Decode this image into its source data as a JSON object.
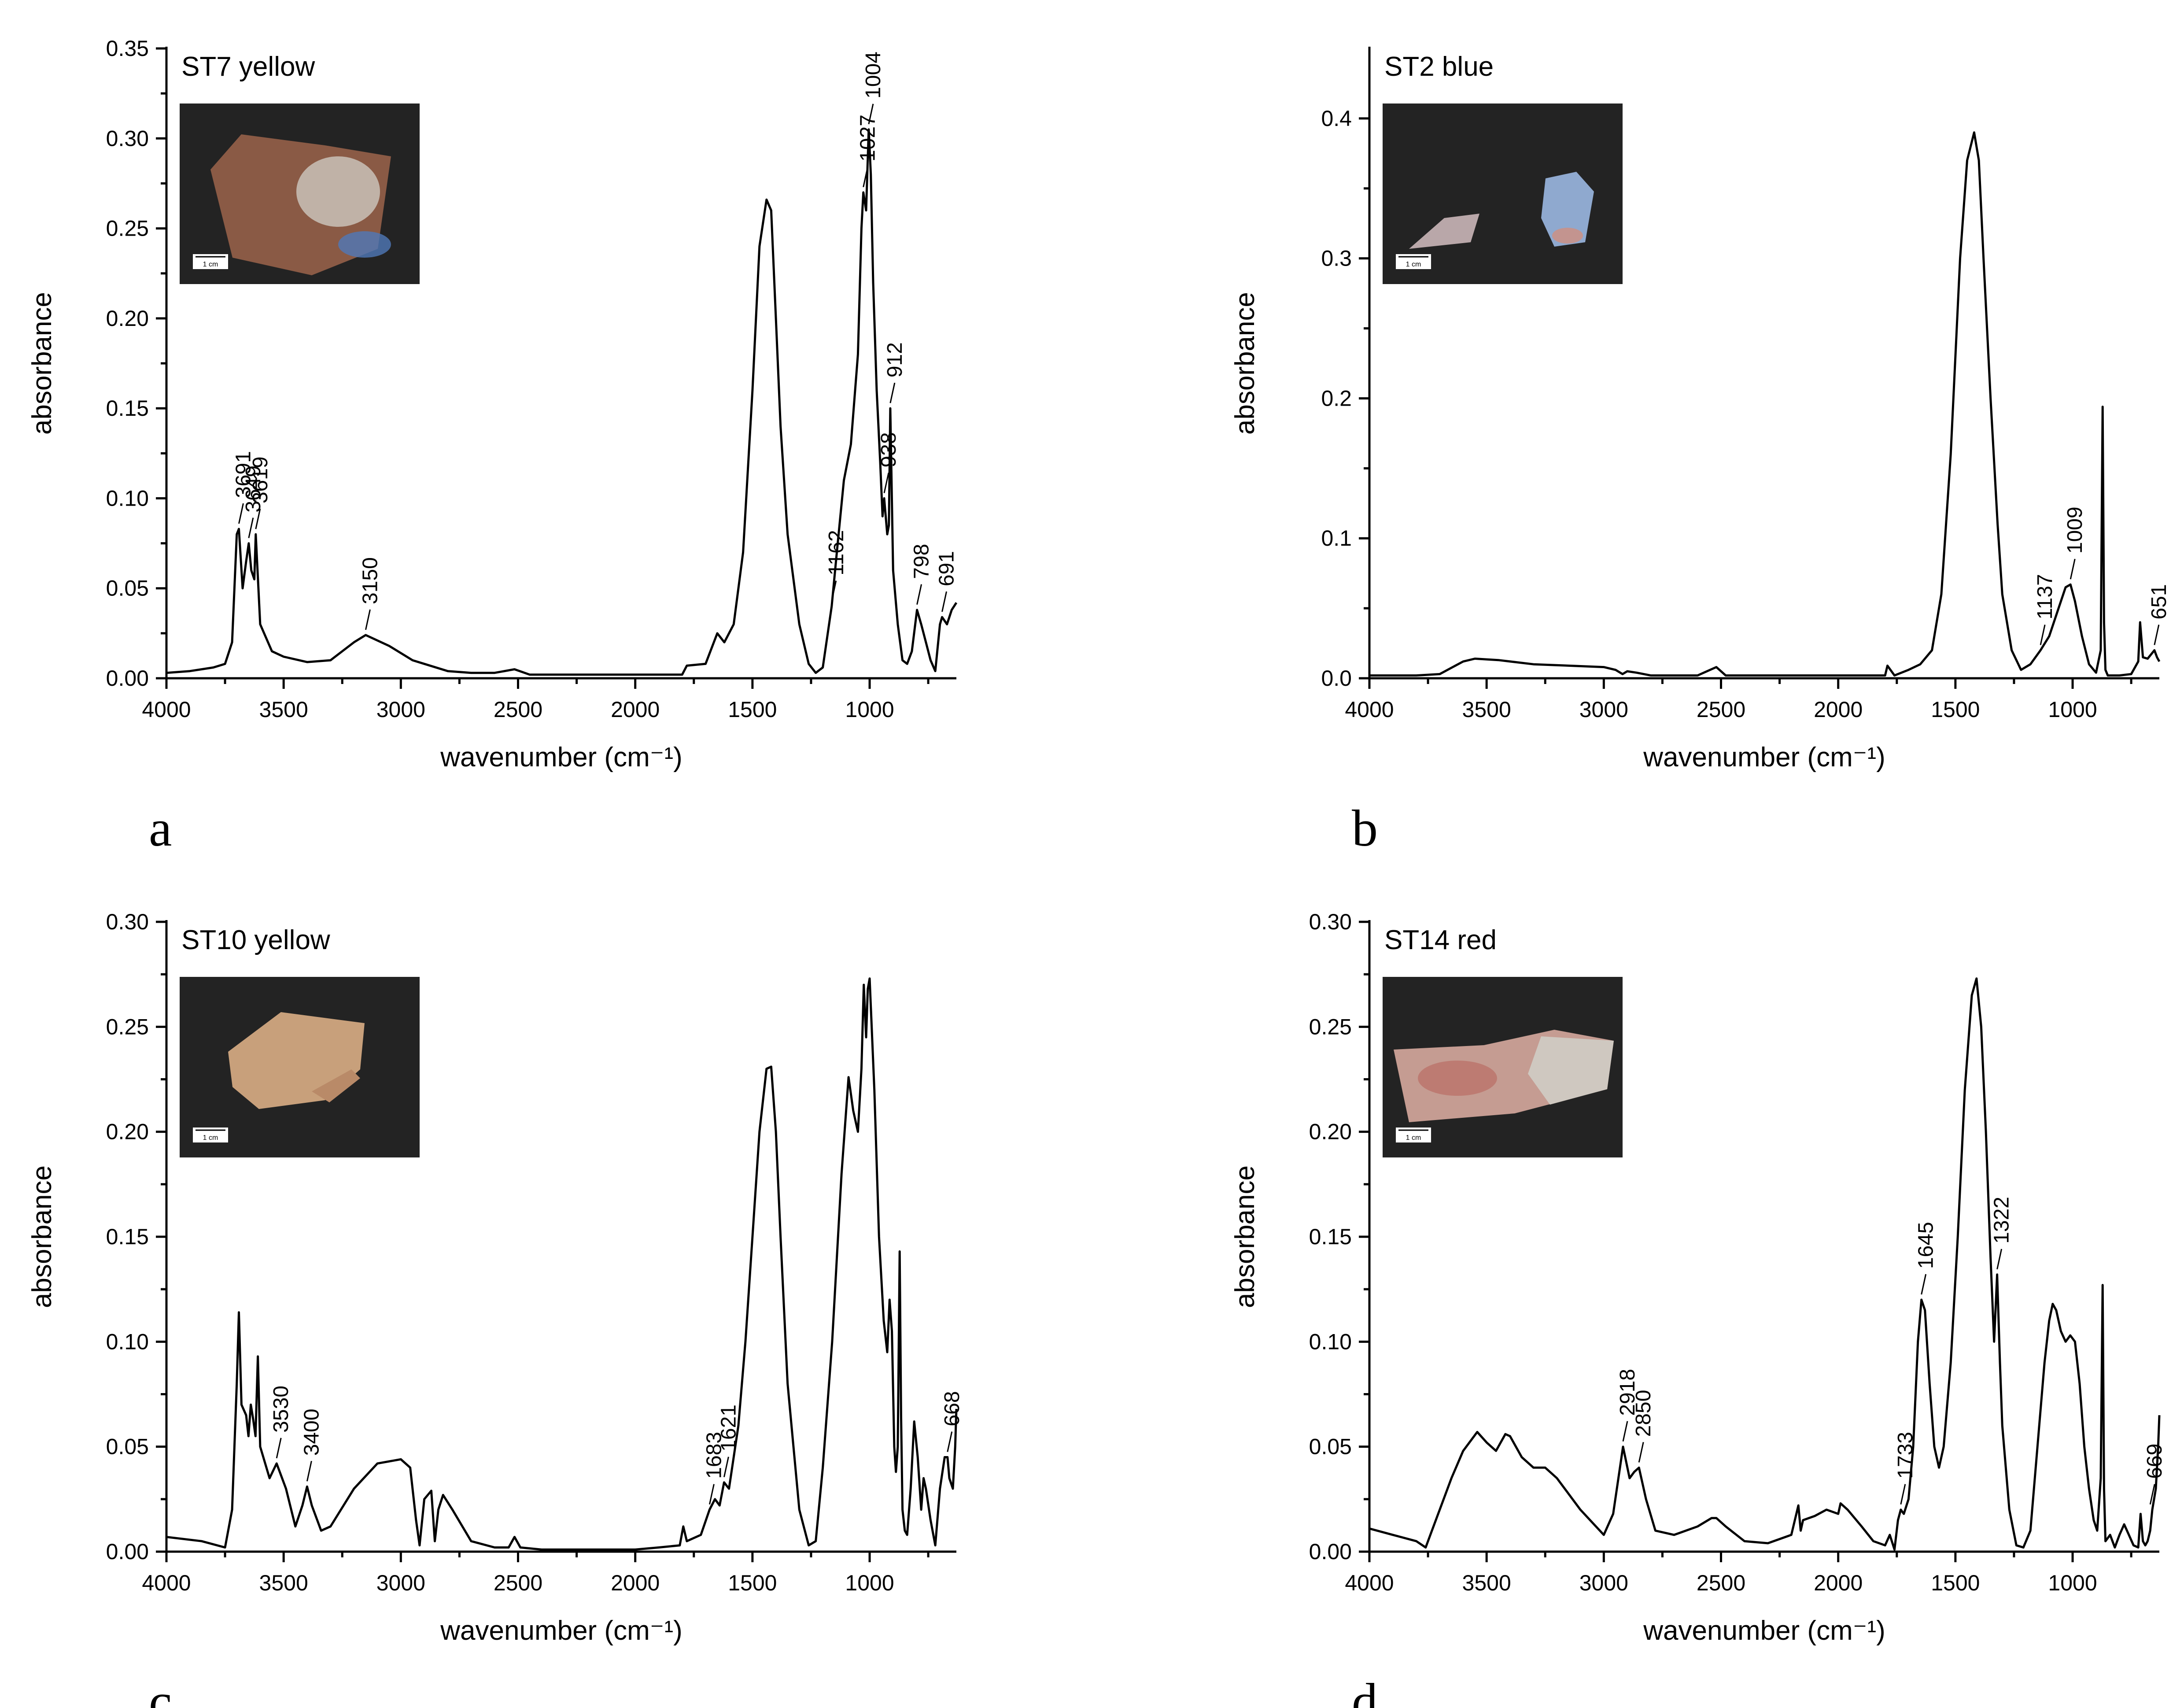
{
  "chart_data": [
    {
      "type": "line",
      "panel": "a",
      "title": "ST7 yellow",
      "xlabel": "wavenumber (cm⁻¹)",
      "ylabel": "absorbance",
      "xlim": [
        4000,
        630
      ],
      "ylim": [
        0,
        0.35
      ],
      "x_reversed": true,
      "xticks": [
        4000,
        3500,
        3000,
        2500,
        2000,
        1500,
        1000
      ],
      "xtick_labels": [
        "4000",
        "3500",
        "3000",
        "2500",
        "2000",
        "1500",
        "1000"
      ],
      "yticks": [
        0,
        0.05,
        0.1,
        0.15,
        0.2,
        0.25,
        0.3,
        0.35
      ],
      "ytick_labels": [
        "0.00",
        "0.05",
        "0.10",
        "0.15",
        "0.20",
        "0.25",
        "0.30",
        "0.35"
      ],
      "inset": {
        "scale_label": "1 cm",
        "colors": [
          "#8a5a45",
          "#c9c2b9",
          "#4f78b8"
        ]
      },
      "series": [
        {
          "x": [
            4000,
            3900,
            3800,
            3750,
            3720,
            3700,
            3691,
            3675,
            3660,
            3649,
            3638,
            3625,
            3619,
            3600,
            3550,
            3500,
            3400,
            3300,
            3200,
            3150,
            3050,
            2950,
            2900,
            2800,
            2700,
            2600,
            2515,
            2450,
            2300,
            2100,
            2000,
            1900,
            1800,
            1780,
            1700,
            1650,
            1620,
            1580,
            1540,
            1500,
            1470,
            1440,
            1420,
            1400,
            1380,
            1350,
            1300,
            1260,
            1230,
            1200,
            1162,
            1140,
            1110,
            1080,
            1050,
            1035,
            1027,
            1015,
            1004,
            995,
            985,
            970,
            955,
            945,
            938,
            925,
            918,
            912,
            900,
            880,
            860,
            840,
            820,
            798,
            780,
            760,
            740,
            720,
            700,
            691,
            670,
            650,
            630
          ],
          "y": [
            0.003,
            0.004,
            0.006,
            0.008,
            0.02,
            0.08,
            0.083,
            0.05,
            0.065,
            0.075,
            0.06,
            0.055,
            0.08,
            0.03,
            0.015,
            0.012,
            0.009,
            0.01,
            0.02,
            0.024,
            0.018,
            0.01,
            0.008,
            0.004,
            0.003,
            0.003,
            0.005,
            0.002,
            0.002,
            0.002,
            0.002,
            0.002,
            0.002,
            0.007,
            0.008,
            0.025,
            0.02,
            0.03,
            0.07,
            0.16,
            0.24,
            0.266,
            0.26,
            0.2,
            0.14,
            0.08,
            0.03,
            0.008,
            0.003,
            0.006,
            0.04,
            0.07,
            0.11,
            0.13,
            0.18,
            0.25,
            0.27,
            0.26,
            0.305,
            0.28,
            0.22,
            0.16,
            0.12,
            0.09,
            0.1,
            0.08,
            0.085,
            0.15,
            0.06,
            0.03,
            0.01,
            0.008,
            0.015,
            0.038,
            0.03,
            0.02,
            0.01,
            0.004,
            0.03,
            0.034,
            0.03,
            0.038,
            0.042
          ]
        }
      ],
      "annotations": [
        {
          "label": "3691",
          "x": 3691,
          "y": 0.083
        },
        {
          "label": "3649",
          "x": 3649,
          "y": 0.075
        },
        {
          "label": "3619",
          "x": 3619,
          "y": 0.08
        },
        {
          "label": "3150",
          "x": 3150,
          "y": 0.024
        },
        {
          "label": "1162",
          "x": 1162,
          "y": 0.04
        },
        {
          "label": "1027",
          "x": 1027,
          "y": 0.27
        },
        {
          "label": "1004",
          "x": 1004,
          "y": 0.305
        },
        {
          "label": "938",
          "x": 938,
          "y": 0.1
        },
        {
          "label": "912",
          "x": 912,
          "y": 0.15
        },
        {
          "label": "798",
          "x": 798,
          "y": 0.038
        },
        {
          "label": "691",
          "x": 691,
          "y": 0.034
        }
      ]
    },
    {
      "type": "line",
      "panel": "b",
      "title": "ST2 blue",
      "xlabel": "wavenumber (cm⁻¹)",
      "ylabel": "absorbance",
      "xlim": [
        4000,
        630
      ],
      "ylim": [
        0,
        0.45
      ],
      "x_reversed": true,
      "xticks": [
        4000,
        3500,
        3000,
        2500,
        2000,
        1500,
        1000
      ],
      "xtick_labels": [
        "4000",
        "3500",
        "3000",
        "2500",
        "2000",
        "1500",
        "1000"
      ],
      "yticks": [
        0,
        0.1,
        0.2,
        0.3,
        0.4
      ],
      "ytick_labels": [
        "0.0",
        "0.1",
        "0.2",
        "0.3",
        "0.4"
      ],
      "inset": {
        "scale_label": "1 cm",
        "colors": [
          "#b9a7a9",
          "#8fa9cf",
          "#d08f7e"
        ]
      },
      "series": [
        {
          "x": [
            4000,
            3800,
            3700,
            3600,
            3550,
            3450,
            3300,
            3150,
            3000,
            2950,
            2920,
            2900,
            2860,
            2800,
            2600,
            2520,
            2480,
            2300,
            2100,
            2000,
            1900,
            1800,
            1790,
            1760,
            1700,
            1650,
            1600,
            1560,
            1520,
            1480,
            1450,
            1420,
            1400,
            1380,
            1350,
            1320,
            1300,
            1260,
            1220,
            1180,
            1137,
            1100,
            1060,
            1030,
            1009,
            990,
            960,
            930,
            900,
            880,
            872,
            866,
            860,
            850,
            800,
            750,
            720,
            712,
            700,
            680,
            651,
            640,
            630
          ],
          "y": [
            0.002,
            0.002,
            0.003,
            0.012,
            0.014,
            0.013,
            0.01,
            0.009,
            0.008,
            0.006,
            0.003,
            0.005,
            0.004,
            0.002,
            0.002,
            0.008,
            0.002,
            0.002,
            0.002,
            0.002,
            0.002,
            0.002,
            0.009,
            0.002,
            0.006,
            0.01,
            0.02,
            0.06,
            0.16,
            0.3,
            0.37,
            0.39,
            0.37,
            0.3,
            0.2,
            0.11,
            0.06,
            0.02,
            0.006,
            0.01,
            0.02,
            0.03,
            0.05,
            0.065,
            0.067,
            0.055,
            0.03,
            0.01,
            0.004,
            0.02,
            0.194,
            0.04,
            0.006,
            0.002,
            0.002,
            0.003,
            0.012,
            0.04,
            0.015,
            0.014,
            0.02,
            0.015,
            0.012
          ]
        }
      ],
      "annotations": [
        {
          "label": "1137",
          "x": 1137,
          "y": 0.02
        },
        {
          "label": "1009",
          "x": 1009,
          "y": 0.067
        },
        {
          "label": "651",
          "x": 651,
          "y": 0.02
        }
      ]
    },
    {
      "type": "line",
      "panel": "c",
      "title": "ST10 yellow",
      "xlabel": "wavenumber (cm⁻¹)",
      "ylabel": "absorbance",
      "xlim": [
        4000,
        630
      ],
      "ylim": [
        0,
        0.3
      ],
      "x_reversed": true,
      "xticks": [
        4000,
        3500,
        3000,
        2500,
        2000,
        1500,
        1000
      ],
      "xtick_labels": [
        "4000",
        "3500",
        "3000",
        "2500",
        "2000",
        "1500",
        "1000"
      ],
      "yticks": [
        0,
        0.05,
        0.1,
        0.15,
        0.2,
        0.25,
        0.3
      ],
      "ytick_labels": [
        "0.00",
        "0.05",
        "0.10",
        "0.15",
        "0.20",
        "0.25",
        "0.30"
      ],
      "inset": {
        "scale_label": "1 cm",
        "colors": [
          "#c8a07b",
          "#b98a68"
        ]
      },
      "series": [
        {
          "x": [
            4000,
            3850,
            3750,
            3720,
            3700,
            3691,
            3680,
            3660,
            3650,
            3640,
            3630,
            3620,
            3610,
            3600,
            3560,
            3530,
            3490,
            3450,
            3420,
            3400,
            3380,
            3340,
            3300,
            3200,
            3100,
            3000,
            2960,
            2935,
            2920,
            2900,
            2870,
            2855,
            2840,
            2820,
            2780,
            2700,
            2600,
            2540,
            2515,
            2490,
            2400,
            2200,
            2000,
            1900,
            1810,
            1795,
            1780,
            1720,
            1683,
            1660,
            1640,
            1621,
            1600,
            1560,
            1530,
            1500,
            1470,
            1440,
            1420,
            1400,
            1380,
            1350,
            1300,
            1260,
            1230,
            1200,
            1160,
            1120,
            1090,
            1070,
            1050,
            1035,
            1025,
            1015,
            1008,
            1000,
            980,
            960,
            940,
            925,
            915,
            905,
            895,
            888,
            880,
            872,
            866,
            860,
            850,
            840,
            825,
            810,
            795,
            780,
            770,
            760,
            740,
            720,
            700,
            680,
            668,
            660,
            645,
            635,
            630
          ],
          "y": [
            0.007,
            0.005,
            0.002,
            0.02,
            0.08,
            0.114,
            0.07,
            0.065,
            0.055,
            0.07,
            0.063,
            0.055,
            0.093,
            0.05,
            0.035,
            0.042,
            0.03,
            0.012,
            0.022,
            0.031,
            0.022,
            0.01,
            0.012,
            0.03,
            0.042,
            0.044,
            0.04,
            0.015,
            0.003,
            0.025,
            0.029,
            0.005,
            0.02,
            0.027,
            0.02,
            0.005,
            0.002,
            0.002,
            0.007,
            0.002,
            0.001,
            0.001,
            0.001,
            0.002,
            0.003,
            0.012,
            0.005,
            0.008,
            0.02,
            0.025,
            0.022,
            0.033,
            0.03,
            0.06,
            0.1,
            0.15,
            0.2,
            0.23,
            0.231,
            0.2,
            0.15,
            0.08,
            0.02,
            0.003,
            0.005,
            0.04,
            0.1,
            0.18,
            0.226,
            0.21,
            0.2,
            0.23,
            0.27,
            0.245,
            0.268,
            0.273,
            0.22,
            0.15,
            0.11,
            0.095,
            0.12,
            0.105,
            0.05,
            0.038,
            0.05,
            0.143,
            0.065,
            0.02,
            0.01,
            0.008,
            0.03,
            0.062,
            0.045,
            0.02,
            0.035,
            0.03,
            0.015,
            0.003,
            0.03,
            0.045,
            0.045,
            0.035,
            0.03,
            0.05,
            0.068
          ]
        }
      ],
      "annotations": [
        {
          "label": "3530",
          "x": 3530,
          "y": 0.042
        },
        {
          "label": "3400",
          "x": 3400,
          "y": 0.031
        },
        {
          "label": "1683",
          "x": 1683,
          "y": 0.02
        },
        {
          "label": "1621",
          "x": 1621,
          "y": 0.033
        },
        {
          "label": "668",
          "x": 668,
          "y": 0.045
        }
      ]
    },
    {
      "type": "line",
      "panel": "d",
      "title": "ST14 red",
      "xlabel": "wavenumber (cm⁻¹)",
      "ylabel": "absorbance",
      "xlim": [
        4000,
        630
      ],
      "ylim": [
        0,
        0.3
      ],
      "x_reversed": true,
      "xticks": [
        4000,
        3500,
        3000,
        2500,
        2000,
        1500,
        1000
      ],
      "xtick_labels": [
        "4000",
        "3500",
        "3000",
        "2500",
        "2000",
        "1500",
        "1000"
      ],
      "yticks": [
        0,
        0.05,
        0.1,
        0.15,
        0.2,
        0.25,
        0.3
      ],
      "ytick_labels": [
        "0.00",
        "0.05",
        "0.10",
        "0.15",
        "0.20",
        "0.25",
        "0.30"
      ],
      "inset": {
        "scale_label": "1 cm",
        "colors": [
          "#c59c92",
          "#b7655d",
          "#cfc8c0"
        ]
      },
      "series": [
        {
          "x": [
            4000,
            3900,
            3800,
            3760,
            3740,
            3700,
            3650,
            3600,
            3540,
            3500,
            3460,
            3420,
            3400,
            3350,
            3300,
            3250,
            3200,
            3100,
            3000,
            2960,
            2918,
            2890,
            2870,
            2850,
            2820,
            2780,
            2700,
            2600,
            2540,
            2520,
            2480,
            2400,
            2300,
            2200,
            2170,
            2160,
            2150,
            2100,
            2050,
            2000,
            1990,
            1960,
            1900,
            1850,
            1800,
            1780,
            1760,
            1745,
            1733,
            1720,
            1700,
            1680,
            1660,
            1645,
            1630,
            1610,
            1590,
            1570,
            1550,
            1520,
            1490,
            1460,
            1430,
            1410,
            1390,
            1370,
            1350,
            1335,
            1322,
            1310,
            1300,
            1270,
            1240,
            1210,
            1180,
            1150,
            1120,
            1100,
            1085,
            1070,
            1050,
            1030,
            1010,
            990,
            970,
            950,
            930,
            910,
            895,
            880,
            872,
            866,
            860,
            840,
            820,
            800,
            780,
            760,
            740,
            720,
            710,
            700,
            690,
            680,
            669,
            660,
            645,
            635,
            630
          ],
          "y": [
            0.011,
            0.008,
            0.005,
            0.002,
            0.008,
            0.02,
            0.035,
            0.048,
            0.057,
            0.052,
            0.048,
            0.056,
            0.055,
            0.045,
            0.04,
            0.04,
            0.035,
            0.02,
            0.008,
            0.018,
            0.05,
            0.035,
            0.038,
            0.04,
            0.025,
            0.01,
            0.008,
            0.012,
            0.016,
            0.016,
            0.012,
            0.005,
            0.004,
            0.008,
            0.022,
            0.01,
            0.015,
            0.017,
            0.02,
            0.018,
            0.023,
            0.02,
            0.012,
            0.005,
            0.003,
            0.008,
            0.001,
            0.015,
            0.02,
            0.018,
            0.025,
            0.05,
            0.1,
            0.12,
            0.115,
            0.08,
            0.05,
            0.04,
            0.05,
            0.09,
            0.15,
            0.22,
            0.265,
            0.273,
            0.25,
            0.2,
            0.14,
            0.1,
            0.132,
            0.09,
            0.06,
            0.02,
            0.003,
            0.002,
            0.01,
            0.05,
            0.09,
            0.11,
            0.118,
            0.115,
            0.105,
            0.1,
            0.103,
            0.1,
            0.08,
            0.05,
            0.03,
            0.015,
            0.01,
            0.035,
            0.127,
            0.03,
            0.005,
            0.008,
            0.002,
            0.008,
            0.013,
            0.008,
            0.003,
            0.002,
            0.018,
            0.005,
            0.003,
            0.005,
            0.01,
            0.02,
            0.03,
            0.05,
            0.065
          ]
        }
      ],
      "annotations": [
        {
          "label": "2918",
          "x": 2918,
          "y": 0.05
        },
        {
          "label": "2850",
          "x": 2850,
          "y": 0.04
        },
        {
          "label": "1733",
          "x": 1733,
          "y": 0.02
        },
        {
          "label": "1645",
          "x": 1645,
          "y": 0.12
        },
        {
          "label": "1322",
          "x": 1322,
          "y": 0.132
        },
        {
          "label": "669",
          "x": 669,
          "y": 0.02
        }
      ]
    }
  ]
}
